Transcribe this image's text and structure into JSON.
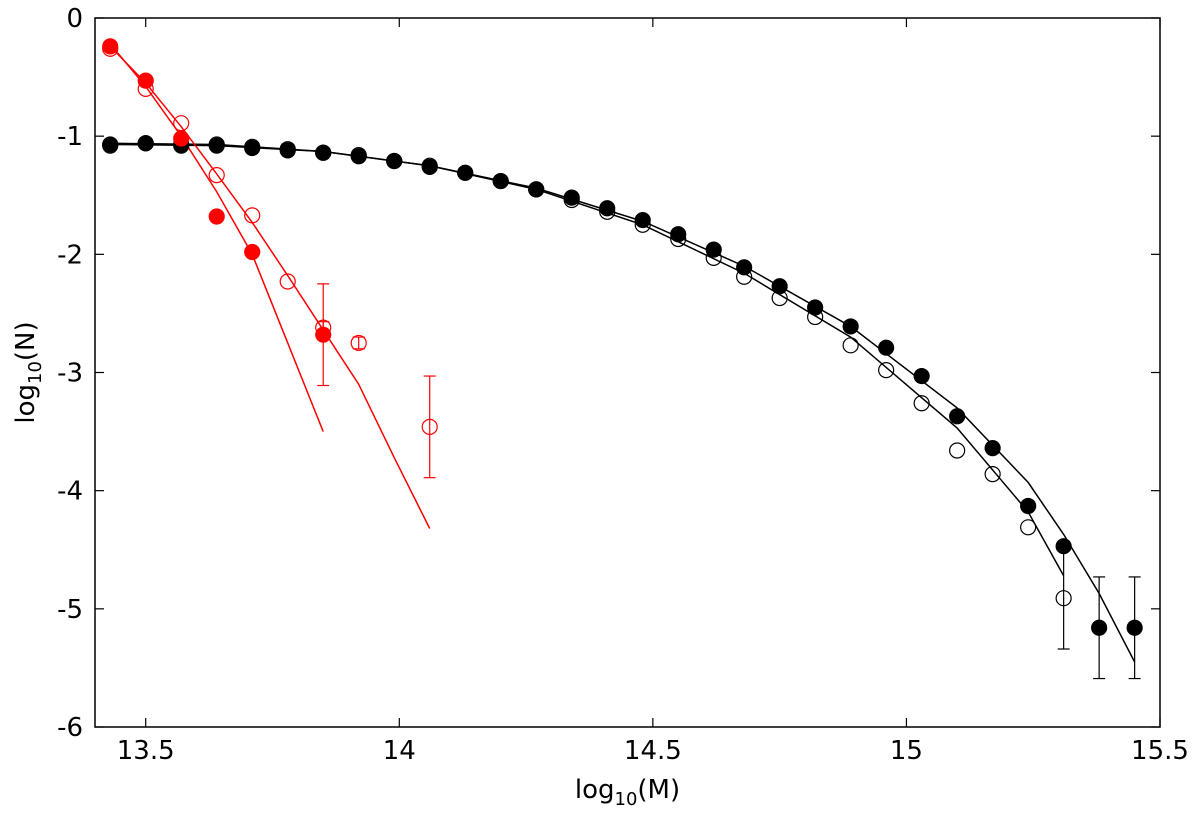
{
  "chart_data": {
    "type": "scatter",
    "xlabel": "log10(M)",
    "ylabel": "log10(N)",
    "xlim": [
      13.4,
      15.5
    ],
    "ylim": [
      -6,
      0
    ],
    "grid": false,
    "xticks": [
      13.5,
      14,
      14.5,
      15,
      15.5
    ],
    "xtick_labels": [
      "13.5",
      "14",
      "14.5",
      "15",
      "15.5"
    ],
    "yticks": [
      0,
      -1,
      -2,
      -3,
      -4,
      -5,
      -6
    ],
    "ytick_labels": [
      "0",
      "-1",
      "-2",
      "-3",
      "-4",
      "-5",
      "-6"
    ],
    "series": [
      {
        "marker": "filled-circle",
        "color": "#000000",
        "points": [
          {
            "x": 13.43,
            "y": -1.07
          },
          {
            "x": 13.5,
            "y": -1.06
          },
          {
            "x": 13.57,
            "y": -1.08
          },
          {
            "x": 13.64,
            "y": -1.08
          },
          {
            "x": 13.71,
            "y": -1.1
          },
          {
            "x": 13.78,
            "y": -1.12
          },
          {
            "x": 13.85,
            "y": -1.14
          },
          {
            "x": 13.92,
            "y": -1.17
          },
          {
            "x": 13.99,
            "y": -1.21
          },
          {
            "x": 14.06,
            "y": -1.26
          },
          {
            "x": 14.13,
            "y": -1.31
          },
          {
            "x": 14.2,
            "y": -1.38
          },
          {
            "x": 14.27,
            "y": -1.45
          },
          {
            "x": 14.34,
            "y": -1.52
          },
          {
            "x": 14.41,
            "y": -1.61
          },
          {
            "x": 14.48,
            "y": -1.71
          },
          {
            "x": 14.55,
            "y": -1.83
          },
          {
            "x": 14.62,
            "y": -1.96
          },
          {
            "x": 14.68,
            "y": -2.11
          },
          {
            "x": 14.75,
            "y": -2.27
          },
          {
            "x": 14.82,
            "y": -2.45
          },
          {
            "x": 14.89,
            "y": -2.61
          },
          {
            "x": 14.96,
            "y": -2.79
          },
          {
            "x": 15.03,
            "y": -3.03
          },
          {
            "x": 15.1,
            "y": -3.37
          },
          {
            "x": 15.17,
            "y": -3.64
          },
          {
            "x": 15.24,
            "y": -4.13
          },
          {
            "x": 15.31,
            "y": -4.47
          },
          {
            "x": 15.38,
            "y": -5.16,
            "err": 0.43
          },
          {
            "x": 15.45,
            "y": -5.16,
            "err": 0.43
          }
        ]
      },
      {
        "marker": "open-circle",
        "color": "#000000",
        "points": [
          {
            "x": 13.43,
            "y": -1.08
          },
          {
            "x": 13.5,
            "y": -1.06
          },
          {
            "x": 13.57,
            "y": -1.07
          },
          {
            "x": 13.64,
            "y": -1.07
          },
          {
            "x": 13.71,
            "y": -1.09
          },
          {
            "x": 13.78,
            "y": -1.11
          },
          {
            "x": 13.85,
            "y": -1.14
          },
          {
            "x": 13.92,
            "y": -1.16
          },
          {
            "x": 13.99,
            "y": -1.21
          },
          {
            "x": 14.06,
            "y": -1.25
          },
          {
            "x": 14.13,
            "y": -1.31
          },
          {
            "x": 14.2,
            "y": -1.38
          },
          {
            "x": 14.27,
            "y": -1.45
          },
          {
            "x": 14.34,
            "y": -1.54
          },
          {
            "x": 14.41,
            "y": -1.64
          },
          {
            "x": 14.48,
            "y": -1.75
          },
          {
            "x": 14.55,
            "y": -1.87
          },
          {
            "x": 14.62,
            "y": -2.03
          },
          {
            "x": 14.68,
            "y": -2.19
          },
          {
            "x": 14.75,
            "y": -2.37
          },
          {
            "x": 14.82,
            "y": -2.53
          },
          {
            "x": 14.89,
            "y": -2.77
          },
          {
            "x": 14.96,
            "y": -2.98
          },
          {
            "x": 15.03,
            "y": -3.26
          },
          {
            "x": 15.1,
            "y": -3.66
          },
          {
            "x": 15.17,
            "y": -3.86
          },
          {
            "x": 15.24,
            "y": -4.31
          },
          {
            "x": 15.31,
            "y": -4.91,
            "err": 0.43
          }
        ]
      },
      {
        "marker": "filled-circle",
        "color": "#ff0000",
        "points": [
          {
            "x": 13.43,
            "y": -0.24
          },
          {
            "x": 13.5,
            "y": -0.53
          },
          {
            "x": 13.57,
            "y": -1.02
          },
          {
            "x": 13.64,
            "y": -1.68
          },
          {
            "x": 13.71,
            "y": -1.98
          },
          {
            "x": 13.85,
            "y": -2.68
          }
        ]
      },
      {
        "marker": "open-circle",
        "color": "#ff0000",
        "points": [
          {
            "x": 13.43,
            "y": -0.26
          },
          {
            "x": 13.5,
            "y": -0.6
          },
          {
            "x": 13.57,
            "y": -0.89
          },
          {
            "x": 13.64,
            "y": -1.33
          },
          {
            "x": 13.71,
            "y": -1.67
          },
          {
            "x": 13.78,
            "y": -2.23
          },
          {
            "x": 13.85,
            "y": -2.62,
            "err": 0.05
          },
          {
            "x": 13.92,
            "y": -2.75,
            "err": 0.05
          },
          {
            "x": 14.06,
            "y": -3.46,
            "err": 0.43
          }
        ]
      }
    ],
    "error_bars": [
      {
        "x": 13.85,
        "low": -3.11,
        "high": -2.25,
        "color": "#ff0000"
      }
    ],
    "curves": [
      {
        "color": "#000000",
        "points": [
          {
            "x": 13.43,
            "y": -1.06
          },
          {
            "x": 13.64,
            "y": -1.07
          },
          {
            "x": 13.85,
            "y": -1.13
          },
          {
            "x": 14.06,
            "y": -1.25
          },
          {
            "x": 14.27,
            "y": -1.44
          },
          {
            "x": 14.48,
            "y": -1.72
          },
          {
            "x": 14.68,
            "y": -2.1
          },
          {
            "x": 14.89,
            "y": -2.61
          },
          {
            "x": 15.1,
            "y": -3.3
          },
          {
            "x": 15.24,
            "y": -3.93
          },
          {
            "x": 15.31,
            "y": -4.37
          },
          {
            "x": 15.38,
            "y": -4.87
          },
          {
            "x": 15.45,
            "y": -5.45
          }
        ]
      },
      {
        "color": "#000000",
        "points": [
          {
            "x": 13.43,
            "y": -1.07
          },
          {
            "x": 13.64,
            "y": -1.08
          },
          {
            "x": 13.85,
            "y": -1.13
          },
          {
            "x": 14.06,
            "y": -1.25
          },
          {
            "x": 14.27,
            "y": -1.45
          },
          {
            "x": 14.48,
            "y": -1.75
          },
          {
            "x": 14.68,
            "y": -2.16
          },
          {
            "x": 14.89,
            "y": -2.7
          },
          {
            "x": 15.1,
            "y": -3.47
          },
          {
            "x": 15.24,
            "y": -4.18
          },
          {
            "x": 15.31,
            "y": -4.72
          }
        ]
      },
      {
        "color": "#ff0000",
        "points": [
          {
            "x": 13.43,
            "y": -0.22
          },
          {
            "x": 13.5,
            "y": -0.58
          },
          {
            "x": 13.57,
            "y": -1.0
          },
          {
            "x": 13.64,
            "y": -1.47
          },
          {
            "x": 13.71,
            "y": -2.0
          },
          {
            "x": 13.78,
            "y": -2.75
          },
          {
            "x": 13.85,
            "y": -3.5
          }
        ]
      },
      {
        "color": "#ff0000",
        "points": [
          {
            "x": 13.43,
            "y": -0.24
          },
          {
            "x": 13.5,
            "y": -0.55
          },
          {
            "x": 13.57,
            "y": -0.92
          },
          {
            "x": 13.64,
            "y": -1.32
          },
          {
            "x": 13.71,
            "y": -1.73
          },
          {
            "x": 13.78,
            "y": -2.18
          },
          {
            "x": 13.85,
            "y": -2.64
          },
          {
            "x": 13.92,
            "y": -3.1
          },
          {
            "x": 13.99,
            "y": -3.72
          },
          {
            "x": 14.06,
            "y": -4.32
          }
        ]
      }
    ]
  }
}
